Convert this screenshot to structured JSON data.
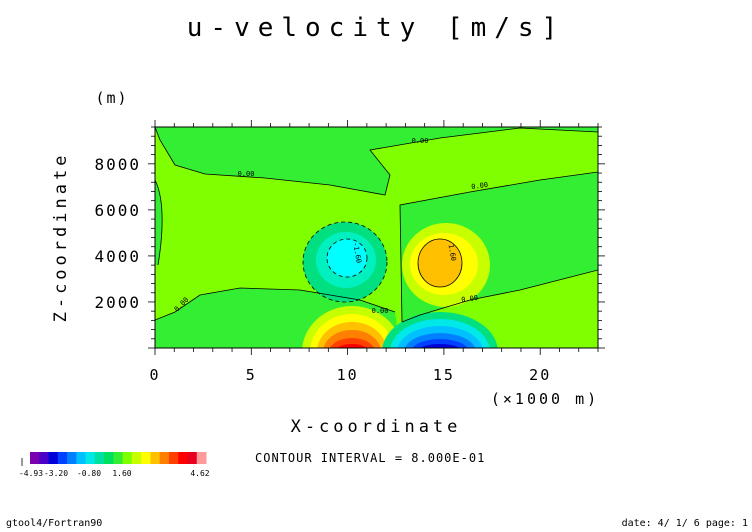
{
  "chart_data": {
    "type": "contour",
    "title": "u-velocity [m/s]",
    "xlabel": "X-coordinate",
    "x_unit": "(×1000 m)",
    "ylabel": "Z-coordinate",
    "y_unit": "(m)",
    "xlim": [
      0,
      23
    ],
    "ylim": [
      0,
      9600
    ],
    "x_ticks": [
      0,
      5,
      10,
      15,
      20
    ],
    "y_ticks": [
      2000,
      4000,
      6000,
      8000
    ],
    "contour_interval_text": "CONTOUR INTERVAL = 8.000E-01",
    "contour_labels": [
      "0.00",
      "0.00",
      "0.00",
      "0.00",
      "0.00",
      "0.00",
      "-1.60",
      "1.60"
    ],
    "colorbar": {
      "labels": [
        "-4.93",
        "-3.20",
        "-0.80",
        "1.60",
        "4.62"
      ],
      "colors": [
        "#7a00b0",
        "#4b00c8",
        "#0000d8",
        "#0040ff",
        "#0080ff",
        "#00c0ff",
        "#00e8e8",
        "#00e0a0",
        "#00e060",
        "#33ee33",
        "#80ff00",
        "#c8ff00",
        "#ffff00",
        "#ffc000",
        "#ff8000",
        "#ff4000",
        "#ff0000",
        "#e80020",
        "#ff9a9a"
      ]
    },
    "extrema": {
      "negative_mid": {
        "x": 10.3,
        "z": 4100,
        "level": -1.6
      },
      "positive_mid": {
        "x": 14.4,
        "z": 4000,
        "level": 1.6
      },
      "positive_surface": {
        "x": 10.8,
        "z": 0,
        "level": 4.62
      },
      "negative_surface": {
        "x": 14.2,
        "z": 0,
        "level": -4.93
      }
    }
  },
  "footer": {
    "left": "gtool4/Fortran90",
    "right": "date: 4/ 1/ 6 page: 1"
  }
}
